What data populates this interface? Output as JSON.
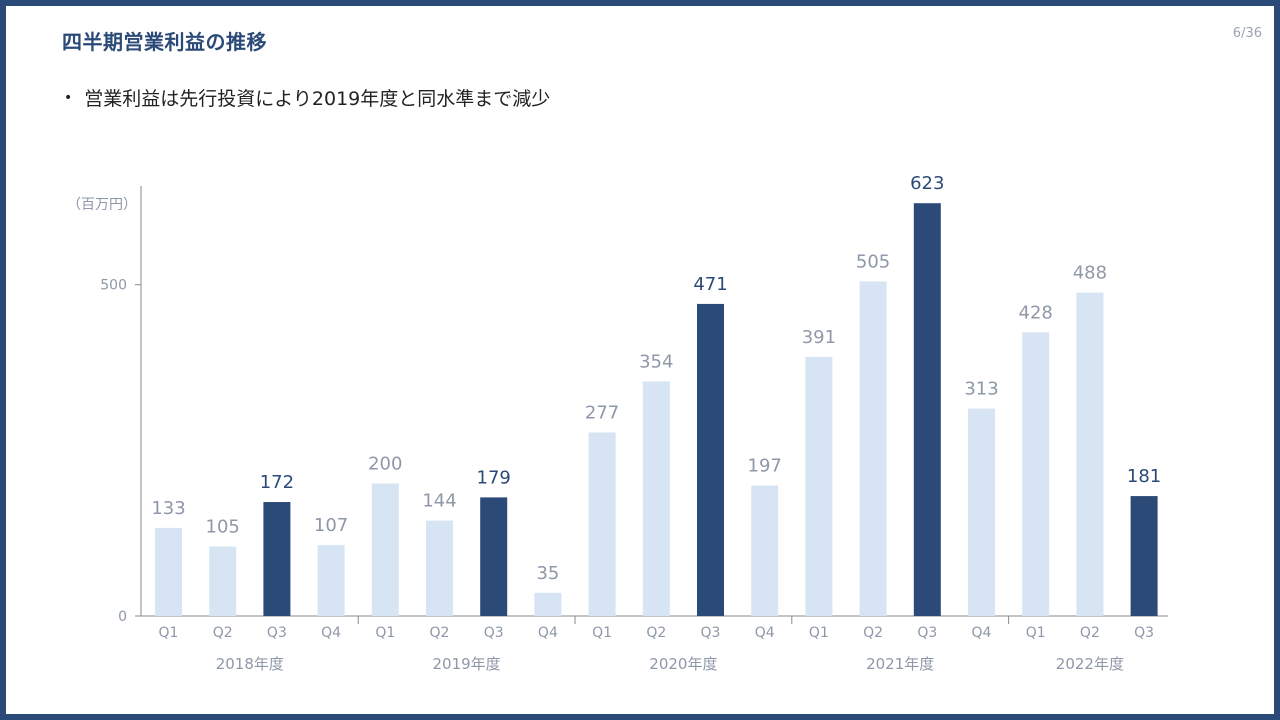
{
  "slide": {
    "title": "四半期営業利益の推移",
    "page": "6/36",
    "bullet": "営業利益は先行投資により2019年度と同水準まで減少"
  },
  "colors": {
    "frame": "#2b4a78",
    "highlight": "#2b4a78",
    "normal": "#d6e4f3",
    "axis": "#8a8a8a",
    "label_normal": "#8e98a8",
    "label_highlight": "#2b4a78"
  },
  "chart_data": {
    "type": "bar",
    "unit_label": "（百万円）",
    "ylim": [
      0,
      650
    ],
    "yticks": [
      0,
      500
    ],
    "categories": [
      "Q1",
      "Q2",
      "Q3",
      "Q4",
      "Q1",
      "Q2",
      "Q3",
      "Q4",
      "Q1",
      "Q2",
      "Q3",
      "Q4",
      "Q1",
      "Q2",
      "Q3",
      "Q4",
      "Q1",
      "Q2",
      "Q3"
    ],
    "values": [
      133,
      105,
      172,
      107,
      200,
      144,
      179,
      35,
      277,
      354,
      471,
      197,
      391,
      505,
      623,
      313,
      428,
      488,
      181
    ],
    "highlight": [
      false,
      false,
      true,
      false,
      false,
      false,
      true,
      false,
      false,
      false,
      true,
      false,
      false,
      false,
      true,
      false,
      false,
      false,
      true
    ],
    "groups": [
      {
        "label": "2018年度",
        "count": 4
      },
      {
        "label": "2019年度",
        "count": 4
      },
      {
        "label": "2020年度",
        "count": 4
      },
      {
        "label": "2021年度",
        "count": 4
      },
      {
        "label": "2022年度",
        "count": 3
      }
    ],
    "grid": false,
    "legend": "none"
  }
}
